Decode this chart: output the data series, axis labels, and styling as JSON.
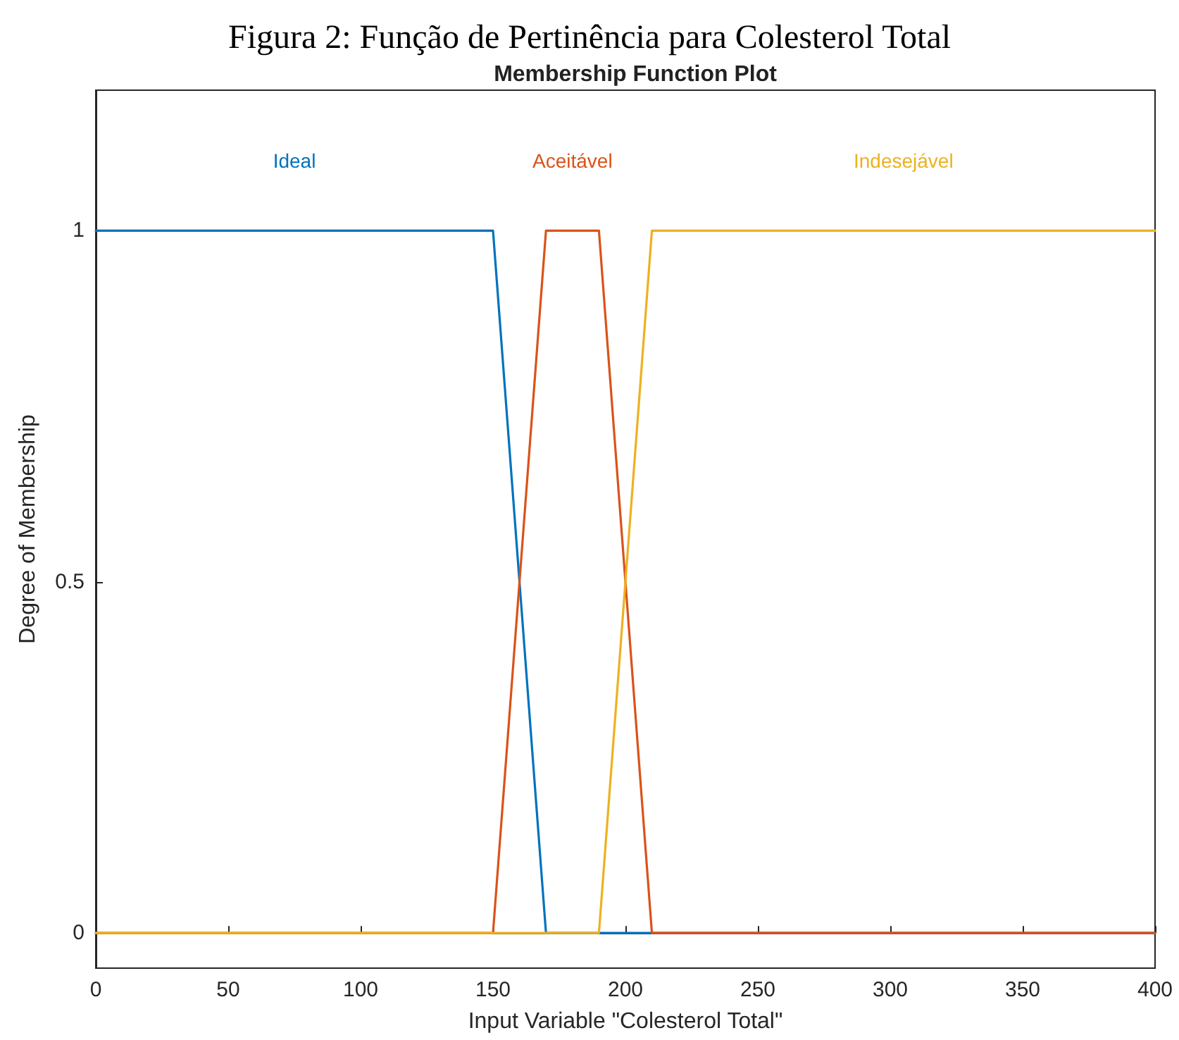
{
  "chart_data": {
    "type": "line",
    "title": "Figura 2: Função de Pertinência para Colesterol Total",
    "subtitle": "Membership Function Plot",
    "xlabel": "Input Variable \"Colesterol Total\"",
    "ylabel": "Degree of Membership",
    "xlim": [
      0,
      400
    ],
    "xticks": [
      0,
      50,
      100,
      150,
      200,
      250,
      300,
      350,
      400
    ],
    "ylim": [
      -0.05,
      1.2
    ],
    "yticks": [
      0,
      0.5,
      1
    ],
    "legend": false,
    "marker": "none",
    "line_style": "solid",
    "series": [
      {
        "name": "Ideal",
        "color": "#0072bd",
        "x": [
          0,
          150,
          170,
          400
        ],
        "values": [
          1,
          1,
          0,
          0
        ]
      },
      {
        "name": "Aceitável",
        "color": "#d95319",
        "x": [
          0,
          150,
          170,
          190,
          210,
          400
        ],
        "values": [
          0,
          0,
          1,
          1,
          0,
          0
        ]
      },
      {
        "name": "Indesejável",
        "color": "#edb120",
        "x": [
          0,
          190,
          210,
          400
        ],
        "values": [
          0,
          0,
          1,
          1
        ]
      }
    ]
  }
}
